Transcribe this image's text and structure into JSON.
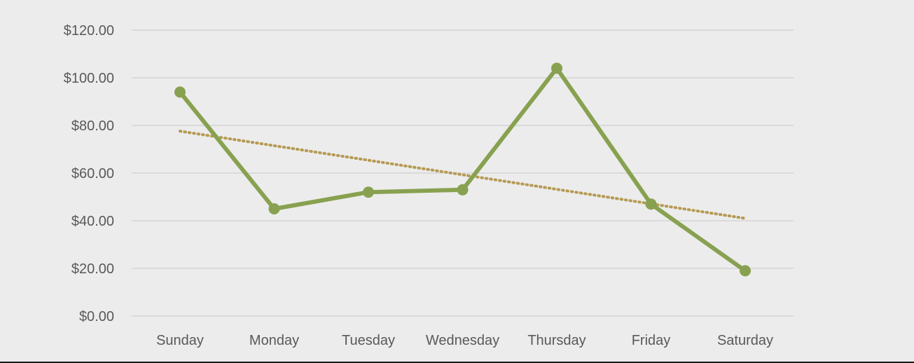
{
  "chart_data": {
    "type": "line",
    "categories": [
      "Sunday",
      "Monday",
      "Tuesday",
      "Wednesday",
      "Thursday",
      "Friday",
      "Saturday"
    ],
    "series": [
      {
        "values": [
          94,
          45,
          52,
          53,
          104,
          47,
          19
        ],
        "color": "#88a150"
      }
    ],
    "trendline": {
      "type": "linear",
      "start": 77.6,
      "end": 41.0,
      "color": "#b59a52",
      "style": "dotted"
    },
    "ylim": [
      0,
      120
    ],
    "yticks": [
      0,
      20,
      40,
      60,
      80,
      100,
      120
    ],
    "ytick_labels": [
      "$0.00",
      "$20.00",
      "$40.00",
      "$60.00",
      "$80.00",
      "$100.00",
      "$120.00"
    ],
    "grid": true,
    "gridline_color": "#d4d4d4",
    "legend": "none"
  }
}
